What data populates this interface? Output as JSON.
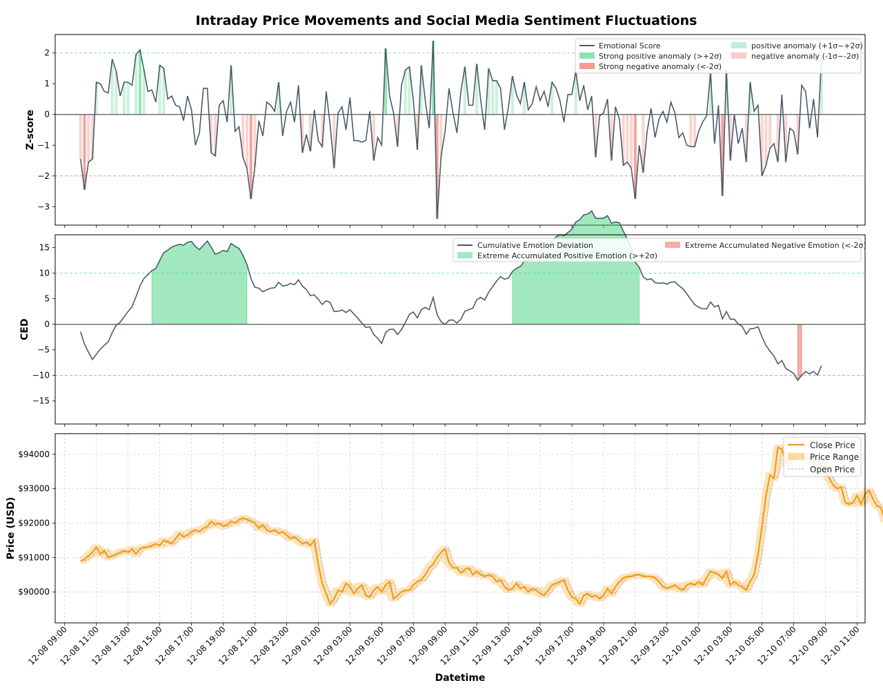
{
  "colors": {
    "line": "#4a5a6a",
    "pos_strong": "#2ecc71",
    "pos_light": "#a9e8c4",
    "neg_strong": "#e74c3c",
    "neg_light": "#f5b7b1",
    "price": "#f39c12",
    "price_range": "#f8c471"
  },
  "chart_data": [
    {
      "type": "line",
      "panel": "emotional_zscore",
      "title": "Intraday Price Movements and Social Media Sentiment Fluctuations",
      "ylabel": "Z-score",
      "ylim": [
        -3.6,
        2.6
      ],
      "yticks": [
        -3,
        -2,
        -1,
        0,
        1,
        2
      ],
      "thresholds": [
        2,
        -2
      ],
      "legend": {
        "series": "Emotional Score",
        "pos_anomaly": "positive anomaly (+1σ~+2σ)",
        "strong_pos": "Strong positive anomaly (>+2σ)",
        "neg_anomaly": "negative anomaly (-1σ~-2σ)",
        "strong_neg": "Strong negative anomaly (<-2σ)"
      },
      "x_start_hour": 10.0,
      "x_step_hours": 0.25,
      "values": [
        -1.45,
        -2.45,
        -1.55,
        -1.45,
        1.05,
        1.0,
        0.75,
        0.7,
        1.8,
        1.4,
        0.6,
        1.05,
        1.05,
        0.95,
        1.95,
        2.1,
        1.45,
        0.75,
        0.8,
        0.4,
        1.6,
        1.5,
        0.5,
        0.6,
        0.3,
        0.25,
        -0.2,
        0.6,
        0.15,
        -1.0,
        -0.6,
        0.85,
        0.85,
        -1.25,
        -1.35,
        0.3,
        0.45,
        -0.25,
        1.6,
        -0.55,
        -0.4,
        -1.4,
        -1.75,
        -2.75,
        -1.7,
        -0.2,
        -0.7,
        0.4,
        0.3,
        0.1,
        1.05,
        -0.7,
        0.1,
        0.4,
        -0.25,
        0.95,
        -1.25,
        -0.65,
        -1.2,
        0.15,
        -0.85,
        -1.05,
        0.75,
        -0.35,
        -1.75,
        0.05,
        0.25,
        -0.5,
        0.55,
        -0.85,
        -0.85,
        -0.9,
        -0.85,
        0.1,
        -1.5,
        -0.75,
        -1.0,
        2.15,
        0.6,
        0.05,
        -1.05,
        0.95,
        1.45,
        1.55,
        0.45,
        -1.15,
        1.6,
        0.45,
        -0.45,
        2.4,
        -3.4,
        -1.35,
        -0.55,
        0.85,
        0.05,
        -0.6,
        0.75,
        1.55,
        0.3,
        0.3,
        1.65,
        0.45,
        -0.5,
        1.5,
        1.1,
        1.1,
        0.85,
        -0.5,
        0.25,
        1.25,
        0.65,
        0.35,
        1.05,
        0.15,
        0.35,
        0.9,
        0.45,
        0.75,
        0.25,
        1.05,
        0.85,
        0.45,
        -0.25,
        0.65,
        0.65,
        1.4,
        0.45,
        0.95,
        0.15,
        0.6,
        -1.4,
        -0.05,
        0.05,
        0.5,
        -1.5,
        0.25,
        -0.15,
        -1.65,
        -1.55,
        -1.75,
        -2.75,
        -1.0,
        -1.9,
        -0.55,
        0.2,
        -0.75,
        -0.15,
        0.1,
        -0.25,
        0.4,
        0.05,
        -0.75,
        -0.6,
        -1.0,
        -1.05,
        -1.05,
        -0.55,
        -0.25,
        -0.05,
        1.35,
        -0.95,
        0.3,
        -2.65,
        1.45,
        -1.5,
        0.0,
        -0.95,
        -0.45,
        -1.55,
        1.05,
        0.1,
        0.3,
        -2.0,
        -1.65,
        -1.1,
        -0.95,
        -1.55,
        0.65,
        -1.55,
        -0.45,
        -0.55,
        -1.3,
        0.95,
        0.75,
        -0.45,
        0.5,
        -0.75,
        1.85
      ]
    },
    {
      "type": "area",
      "panel": "cumulative_deviation",
      "ylabel": "CED",
      "ylim": [
        -19.5,
        17.5
      ],
      "yticks": [
        -15,
        -10,
        -5,
        0,
        5,
        10,
        15
      ],
      "thresholds": [
        10,
        -10
      ],
      "legend": {
        "series": "Cumulative Emotion Deviation",
        "pos": "Extreme Accumulated Positive Emotion (>+2σ)",
        "neg": "Extreme Accumulated Negative Emotion (<-2σ)"
      },
      "x_start_hour": 10.0,
      "x_step_hours": 0.25
    },
    {
      "type": "line",
      "panel": "price",
      "ylabel": "Price (USD)",
      "xlabel": "Datetime",
      "ylim": [
        89100,
        94600
      ],
      "yticks": [
        90000,
        91000,
        92000,
        93000,
        94000
      ],
      "ytick_labels": [
        "$90000",
        "$91000",
        "$92000",
        "$93000",
        "$94000"
      ],
      "legend": {
        "close": "Close Price",
        "range": "Price Range",
        "open": "Open Price"
      },
      "x_start_hour": 10.0,
      "x_step_hours": 0.25,
      "close": [
        90900,
        90950,
        91050,
        91150,
        91300,
        91100,
        91200,
        91000,
        91050,
        91100,
        91150,
        91200,
        91150,
        91250,
        91100,
        91250,
        91300,
        91300,
        91350,
        91400,
        91350,
        91500,
        91450,
        91400,
        91550,
        91700,
        91600,
        91650,
        91750,
        91800,
        91750,
        91850,
        91900,
        92050,
        91950,
        92000,
        91900,
        91950,
        92050,
        92000,
        92100,
        92150,
        92100,
        92050,
        92000,
        91850,
        91950,
        91800,
        91750,
        91800,
        91700,
        91750,
        91650,
        91550,
        91600,
        91500,
        91400,
        91450,
        91350,
        91500,
        90800,
        90250,
        89950,
        89650,
        89800,
        90050,
        90000,
        90250,
        90150,
        89950,
        90100,
        90200,
        89900,
        89850,
        90050,
        90150,
        90000,
        90200,
        90300,
        89800,
        89900,
        90000,
        90050,
        90050,
        90200,
        90300,
        90350,
        90500,
        90700,
        90800,
        91000,
        91150,
        91250,
        90850,
        90700,
        90700,
        90550,
        90650,
        90700,
        90500,
        90600,
        90500,
        90450,
        90500,
        90450,
        90300,
        90350,
        90150,
        90050,
        90100,
        90250,
        90100,
        90150,
        90000,
        90100,
        90050,
        89950,
        89900,
        90050,
        90200,
        90250,
        90300,
        90350,
        90050,
        89850,
        89800,
        89650,
        89900,
        89950,
        89850,
        89900,
        89800,
        89900,
        90100,
        89950,
        90150,
        90300,
        90400,
        90450,
        90450,
        90500,
        90500,
        90450,
        90450,
        90450,
        90400,
        90300,
        90150,
        90100,
        90150,
        90200,
        90100,
        90050,
        90200,
        90250,
        90200,
        90300,
        90200,
        90400,
        90600,
        90550,
        90500,
        90400,
        90600,
        90200,
        90300,
        90200,
        90150,
        90050,
        90300,
        90500,
        91100,
        91900,
        92800,
        93400,
        93300,
        94200,
        94150,
        93750,
        93800,
        93950,
        93900,
        94000,
        93850,
        93900,
        93800,
        93700,
        93750,
        93500,
        93300,
        93100,
        93000,
        93050,
        92600,
        92550,
        92600,
        92800,
        92550,
        92850,
        92950,
        92700,
        92500,
        92450,
        92100,
        92250
      ]
    }
  ],
  "x_axis": {
    "label": "Datetime",
    "tick_labels": [
      "12-08 09:00",
      "12-08 11:00",
      "12-08 13:00",
      "12-08 15:00",
      "12-08 17:00",
      "12-08 19:00",
      "12-08 21:00",
      "12-08 23:00",
      "12-09 01:00",
      "12-09 03:00",
      "12-09 05:00",
      "12-09 07:00",
      "12-09 09:00",
      "12-09 11:00",
      "12-09 13:00",
      "12-09 15:00",
      "12-09 17:00",
      "12-09 19:00",
      "12-09 21:00",
      "12-09 23:00",
      "12-10 01:00",
      "12-10 03:00",
      "12-10 05:00",
      "12-10 07:00",
      "12-10 09:00",
      "12-10 11:00"
    ],
    "tick_hours": [
      9,
      11,
      13,
      15,
      17,
      19,
      21,
      23,
      25,
      27,
      29,
      31,
      33,
      35,
      37,
      39,
      41,
      43,
      45,
      47,
      49,
      51,
      53,
      55,
      57,
      59
    ]
  }
}
